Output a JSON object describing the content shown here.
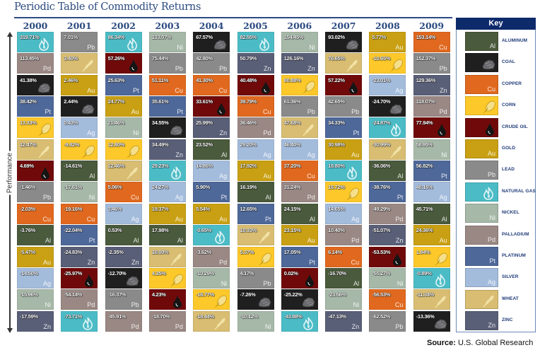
{
  "title": "Periodic Table of Commodity Returns",
  "axis_label": "Performance",
  "key": {
    "title": "Key",
    "items": [
      {
        "code": "Al",
        "name": "ALUMINUM",
        "symbol": "Al",
        "color": "#4a5a3c",
        "icon": ""
      },
      {
        "code": "Coal",
        "name": "COAL",
        "symbol": "",
        "color": "#1f1f1f",
        "icon": "coal-icon"
      },
      {
        "code": "Cu",
        "name": "COPPER",
        "symbol": "Cu",
        "color": "#e0691f",
        "icon": ""
      },
      {
        "code": "Corn",
        "name": "CORN",
        "symbol": "",
        "color": "#fcc82a",
        "icon": "corn-icon"
      },
      {
        "code": "Oil",
        "name": "CRUDE OIL",
        "symbol": "",
        "color": "#700a0a",
        "icon": "oil-drop-icon"
      },
      {
        "code": "Au",
        "name": "GOLD",
        "symbol": "Au",
        "color": "#c9a013",
        "icon": ""
      },
      {
        "code": "Pb",
        "name": "LEAD",
        "symbol": "Pb",
        "color": "#8a8a8a",
        "icon": ""
      },
      {
        "code": "NG",
        "name": "NATURAL GAS",
        "symbol": "",
        "color": "#4bbcc6",
        "icon": "flame-icon"
      },
      {
        "code": "Ni",
        "name": "NICKEL",
        "symbol": "Ni",
        "color": "#a6b8a8",
        "icon": ""
      },
      {
        "code": "Pd",
        "name": "PALLADIUM",
        "symbol": "Pd",
        "color": "#9a8884",
        "icon": ""
      },
      {
        "code": "Pt",
        "name": "PLATINUM",
        "symbol": "Pt",
        "color": "#4e6899",
        "icon": ""
      },
      {
        "code": "Ag",
        "name": "SILVER",
        "symbol": "Ag",
        "color": "#a4bcdc",
        "icon": ""
      },
      {
        "code": "Wheat",
        "name": "WHEAT",
        "symbol": "",
        "color": "#d8bd72",
        "icon": "wheat-icon"
      },
      {
        "code": "Zn",
        "name": "ZINC",
        "symbol": "Zn",
        "color": "#5a5f78",
        "icon": ""
      }
    ]
  },
  "source": {
    "label": "Source:",
    "text": " U.S. Global Research"
  },
  "chart_data": {
    "type": "table",
    "title": "Periodic Table of Commodity Returns",
    "ylabel": "Performance",
    "columns": [
      {
        "year": "2000",
        "returns": [
          [
            "NG",
            "319.71%"
          ],
          [
            "Pd",
            "113.45%"
          ],
          [
            "Coal",
            "41.38%"
          ],
          [
            "Pt",
            "38.42%"
          ],
          [
            "Corn",
            "13.33%"
          ],
          [
            "Wheat",
            "12.47%"
          ],
          [
            "Oil",
            "4.69%"
          ],
          [
            "Pb",
            "-1.46%"
          ],
          [
            "Cu",
            "-2.03%"
          ],
          [
            "Al",
            "-3.76%"
          ],
          [
            "Au",
            "-5.47%"
          ],
          [
            "Ag",
            "-14.50%"
          ],
          [
            "Ni",
            "-15.96%"
          ],
          [
            "Zn",
            "-17.59%"
          ]
        ]
      },
      {
        "year": "2001",
        "returns": [
          [
            "Pb",
            "7.01%"
          ],
          [
            "Wheat",
            "3.40%"
          ],
          [
            "Au",
            "2.46%"
          ],
          [
            "Coal",
            "2.44%"
          ],
          [
            "Ag",
            "0.43%"
          ],
          [
            "Corn",
            "-9.82%"
          ],
          [
            "Al",
            "-14.61%"
          ],
          [
            "Ni",
            "-17.61%"
          ],
          [
            "Cu",
            "-19.16%"
          ],
          [
            "Pt",
            "-22.04%"
          ],
          [
            "Zn",
            "-24.83%"
          ],
          [
            "Oil",
            "-25.97%"
          ],
          [
            "Pd",
            "-54.14%"
          ],
          [
            "NG",
            "-73.71%"
          ]
        ]
      },
      {
        "year": "2002",
        "returns": [
          [
            "NG",
            "86.34%"
          ],
          [
            "Oil",
            "57.26%"
          ],
          [
            "Pt",
            "25.63%"
          ],
          [
            "Au",
            "24.77%"
          ],
          [
            "Ni",
            "21.46%"
          ],
          [
            "Corn",
            "12.80%"
          ],
          [
            "Wheat",
            "12.46%"
          ],
          [
            "Cu",
            "5.06%"
          ],
          [
            "Ag",
            "3.46%"
          ],
          [
            "Al",
            "0.53%"
          ],
          [
            "Zn",
            "-2.35%"
          ],
          [
            "Coal",
            "-12.70%"
          ],
          [
            "Pb",
            "-16.37%"
          ],
          [
            "Pd",
            "-45.91%"
          ]
        ]
      },
      {
        "year": "2003",
        "returns": [
          [
            "Ni",
            "133.07%"
          ],
          [
            "Pb",
            "75.44%"
          ],
          [
            "Cu",
            "51.11%"
          ],
          [
            "Pt",
            "35.61%"
          ],
          [
            "Coal",
            "34.55%"
          ],
          [
            "Zn",
            "34.49%"
          ],
          [
            "NG",
            "29.23%"
          ],
          [
            "Ag",
            "24.27%"
          ],
          [
            "Au",
            "19.37%"
          ],
          [
            "Al",
            "17.98%"
          ],
          [
            "Wheat",
            "16.00%"
          ],
          [
            "Corn",
            "4.35%"
          ],
          [
            "Oil",
            "4.23%"
          ],
          [
            "Pd",
            "-18.70%"
          ]
        ]
      },
      {
        "year": "2004",
        "returns": [
          [
            "Coal",
            "67.57%"
          ],
          [
            "Pb",
            "42.80%"
          ],
          [
            "Cu",
            "41.30%"
          ],
          [
            "Oil",
            "33.61%"
          ],
          [
            "Zn",
            "25.99%"
          ],
          [
            "Al",
            "23.52%"
          ],
          [
            "Ag",
            "14.86%"
          ],
          [
            "Pt",
            "5.90%"
          ],
          [
            "Au",
            "5.54%"
          ],
          [
            "NG",
            "-0.65%"
          ],
          [
            "Pd",
            "-3.62%"
          ],
          [
            "Ni",
            "-10.29%"
          ],
          [
            "Corn",
            "-16.77%"
          ],
          [
            "Wheat",
            "-18.44%"
          ]
        ]
      },
      {
        "year": "2005",
        "returns": [
          [
            "NG",
            "82.55%"
          ],
          [
            "Zn",
            "50.79%"
          ],
          [
            "Oil",
            "40.48%"
          ],
          [
            "Cu",
            "39.79%"
          ],
          [
            "Pd",
            "36.46%"
          ],
          [
            "Ag",
            "29.20%"
          ],
          [
            "Au",
            "17.92%"
          ],
          [
            "Al",
            "16.19%"
          ],
          [
            "Pt",
            "12.65%"
          ],
          [
            "Wheat",
            "10.33%"
          ],
          [
            "Corn",
            "5.37%"
          ],
          [
            "Pb",
            "4.17%"
          ],
          [
            "Coal",
            "-7.26%"
          ],
          [
            "Ni",
            "-10.12%"
          ]
        ]
      },
      {
        "year": "2006",
        "returns": [
          [
            "Ni",
            "154.45%"
          ],
          [
            "Zn",
            "126.16%"
          ],
          [
            "Corn",
            "80.88%"
          ],
          [
            "Pb",
            "61.36%"
          ],
          [
            "Wheat",
            "47.68%"
          ],
          [
            "Ag",
            "46.40%"
          ],
          [
            "Cu",
            "37.20%"
          ],
          [
            "Pd",
            "31.24%"
          ],
          [
            "Al",
            "24.15%"
          ],
          [
            "Au",
            "23.15%"
          ],
          [
            "Pt",
            "17.05%"
          ],
          [
            "Oil",
            "0.02%"
          ],
          [
            "Coal",
            "-25.22%"
          ],
          [
            "NG",
            "-43.88%"
          ]
        ]
      },
      {
        "year": "2007",
        "returns": [
          [
            "Coal",
            "93.02%"
          ],
          [
            "Wheat",
            "76.65%"
          ],
          [
            "Oil",
            "57.22%"
          ],
          [
            "Pb",
            "42.65%"
          ],
          [
            "Pt",
            "34.33%"
          ],
          [
            "Au",
            "30.98%"
          ],
          [
            "NG",
            "18.80%"
          ],
          [
            "Corn",
            "16.72%"
          ],
          [
            "Ag",
            "14.65%"
          ],
          [
            "Pd",
            "10.40%"
          ],
          [
            "Cu",
            "6.14%"
          ],
          [
            "Al",
            "-16.70%"
          ],
          [
            "Ni",
            "-23.56%"
          ],
          [
            "Zn",
            "-47.13%"
          ]
        ]
      },
      {
        "year": "2008",
        "returns": [
          [
            "Au",
            "5.77%"
          ],
          [
            "Corn",
            "-10.65%"
          ],
          [
            "Ag",
            "-23.01%"
          ],
          [
            "Coal",
            "-24.70%"
          ],
          [
            "NG",
            "-24.87%"
          ],
          [
            "Wheat",
            "-30.99%"
          ],
          [
            "Al",
            "-36.06%"
          ],
          [
            "Pt",
            "-38.76%"
          ],
          [
            "Pd",
            "-49.29%"
          ],
          [
            "Zn",
            "-51.07%"
          ],
          [
            "Oil",
            "-53.53%"
          ],
          [
            "Ni",
            "-55.27%"
          ],
          [
            "Cu",
            "-56.53%"
          ],
          [
            "Pb",
            "-62.52%"
          ]
        ]
      },
      {
        "year": "2009",
        "returns": [
          [
            "Cu",
            "153.14%"
          ],
          [
            "Pb",
            "152.37%"
          ],
          [
            "Zn",
            "129.36%"
          ],
          [
            "Pd",
            "118.07%"
          ],
          [
            "Oil",
            "77.94%"
          ],
          [
            "Ni",
            "58.95%"
          ],
          [
            "Pt",
            "56.82%"
          ],
          [
            "Ag",
            "48.16%"
          ],
          [
            "Al",
            "45.71%"
          ],
          [
            "Au",
            "24.36%"
          ],
          [
            "Corn",
            "1.84%"
          ],
          [
            "NG",
            "-0.89%"
          ],
          [
            "Wheat",
            "-11.34%"
          ],
          [
            "Coal",
            "-13.36%"
          ]
        ]
      }
    ]
  }
}
